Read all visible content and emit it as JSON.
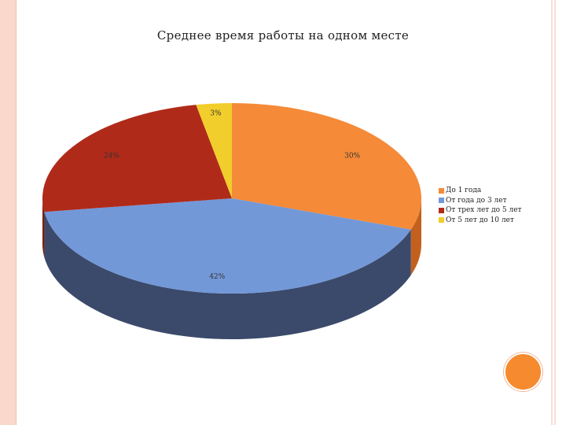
{
  "chart_data": {
    "type": "pie",
    "title": "Среднее время работы на одном месте",
    "categories": [
      "До 1 года",
      "От года до 3 лет",
      "От трех лет до 5 лет",
      "От 5 лет до 10 лет"
    ],
    "values": [
      30,
      42,
      24,
      3
    ],
    "data_labels": [
      "30%",
      "42%",
      "24%",
      "3%"
    ],
    "colors": [
      "#f58a38",
      "#7398d8",
      "#b02a1a",
      "#f1ce2b"
    ],
    "side_colors": [
      "#c4601d",
      "#3b4a6b",
      "#7a1e12",
      "#c2a01c"
    ],
    "legend_position": "right",
    "style": "3d"
  }
}
